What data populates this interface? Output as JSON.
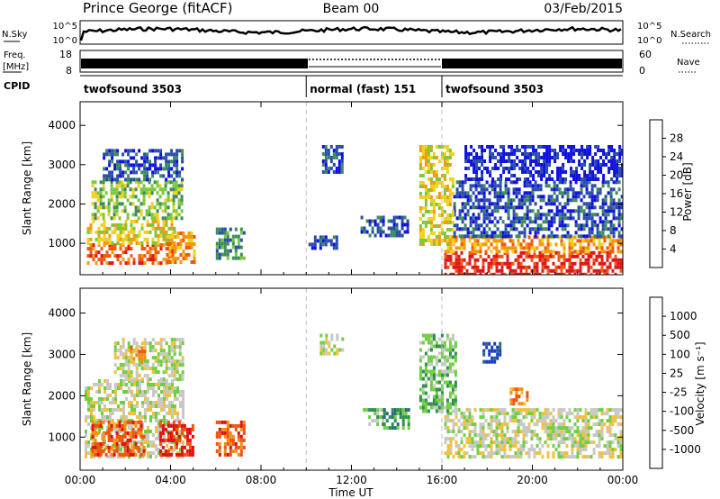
{
  "header": {
    "station": "Prince George (fitACF)",
    "beam": "Beam 00",
    "date": "03/Feb/2015"
  },
  "strips": {
    "nsky_label": "N.Sky",
    "nsky_ticks": [
      "10^5",
      "10^0"
    ],
    "nsearch_label": "N.Search",
    "nsearch_ticks": [
      "10^5",
      "10^0"
    ],
    "freq_label_1": "Freq.",
    "freq_label_2": "[MHz]",
    "freq_ticks": [
      "18",
      "8"
    ],
    "nave_label": "Nave",
    "nave_ticks": [
      "60",
      "0"
    ],
    "cpid_label": "CPID",
    "cpid_segments": [
      {
        "start": 0,
        "end": 10,
        "label": "twofsound 3503"
      },
      {
        "start": 10,
        "end": 16,
        "label": "normal (fast) 151"
      },
      {
        "start": 16,
        "end": 24,
        "label": "twofsound 3503"
      }
    ]
  },
  "chart_data": [
    {
      "type": "heatmap",
      "name": "power",
      "ylabel": "Slant Range [km]",
      "ylim": [
        200,
        4600
      ],
      "yticks": [
        1000,
        2000,
        3000,
        4000
      ],
      "xlim": [
        0,
        24
      ],
      "colorbar_label": "Power [dB]",
      "colorbar_ticks": [
        "4",
        "8",
        "12",
        "16",
        "20",
        "24",
        "28"
      ],
      "colors": [
        "#1010e0",
        "#2a4ea8",
        "#3d8c5a",
        "#7ac83c",
        "#f0d020",
        "#f09a10",
        "#f05a10",
        "#e01818"
      ],
      "regions": [
        {
          "x0": 0.3,
          "x1": 4.2,
          "y0": 500,
          "y1": 1000,
          "level": 6
        },
        {
          "x0": 0.3,
          "x1": 4.2,
          "y0": 1000,
          "y1": 1600,
          "level": 4
        },
        {
          "x0": 0.5,
          "x1": 4.5,
          "y0": 1600,
          "y1": 2600,
          "level": 3
        },
        {
          "x0": 1.0,
          "x1": 4.5,
          "y0": 2600,
          "y1": 3400,
          "level": 1
        },
        {
          "x0": 3.8,
          "x1": 5.0,
          "y0": 500,
          "y1": 1300,
          "level": 5
        },
        {
          "x0": 6.0,
          "x1": 7.2,
          "y0": 600,
          "y1": 1400,
          "level": 2
        },
        {
          "x0": 10.7,
          "x1": 11.6,
          "y0": 2800,
          "y1": 3500,
          "level": 1
        },
        {
          "x0": 12.4,
          "x1": 14.5,
          "y0": 1200,
          "y1": 1700,
          "level": 1
        },
        {
          "x0": 10.1,
          "x1": 11.4,
          "y0": 900,
          "y1": 1200,
          "level": 1
        },
        {
          "x0": 16.1,
          "x1": 24.0,
          "y0": 200,
          "y1": 800,
          "level": 7
        },
        {
          "x0": 16.1,
          "x1": 24.0,
          "y0": 800,
          "y1": 1200,
          "level": 5
        },
        {
          "x0": 16.5,
          "x1": 24.0,
          "y0": 1200,
          "y1": 2600,
          "level": 1
        },
        {
          "x0": 15.0,
          "x1": 16.5,
          "y0": 1000,
          "y1": 3500,
          "level": 4
        },
        {
          "x0": 17.0,
          "x1": 24.0,
          "y0": 2600,
          "y1": 3500,
          "level": 0
        }
      ]
    },
    {
      "type": "heatmap",
      "name": "velocity",
      "ylabel": "Slant Range [km]",
      "xlabel": "Time UT",
      "ylim": [
        200,
        4600
      ],
      "yticks": [
        1000,
        2000,
        3000,
        4000
      ],
      "xlim": [
        0,
        24
      ],
      "xticks": [
        "00:00",
        "04:00",
        "08:00",
        "12:00",
        "16:00",
        "20:00",
        "00:00"
      ],
      "colorbar_label": "Velocity [m s⁻¹]",
      "colorbar_ticks": [
        "1000",
        "500",
        "100",
        "25",
        "-25",
        "-100",
        "-500",
        "-1000"
      ],
      "colors": [
        "#1a3cc8",
        "#2a6a7a",
        "#2f8f4f",
        "#6ed040",
        "#c8c8c4",
        "#f0c040",
        "#f09010",
        "#f05010",
        "#e01010"
      ],
      "regions": [
        {
          "x0": 0.2,
          "x1": 4.5,
          "y0": 500,
          "y1": 2400,
          "level": 4
        },
        {
          "x0": 1.5,
          "x1": 4.5,
          "y0": 2400,
          "y1": 3400,
          "level": 4
        },
        {
          "x0": 0.5,
          "x1": 2.8,
          "y0": 600,
          "y1": 1400,
          "level": 7
        },
        {
          "x0": 3.5,
          "x1": 5.0,
          "y0": 600,
          "y1": 1400,
          "level": 8
        },
        {
          "x0": 2.2,
          "x1": 2.8,
          "y0": 2800,
          "y1": 3200,
          "level": 6
        },
        {
          "x0": 6.0,
          "x1": 7.2,
          "y0": 600,
          "y1": 1400,
          "level": 7
        },
        {
          "x0": 10.6,
          "x1": 11.6,
          "y0": 3000,
          "y1": 3500,
          "level": 4
        },
        {
          "x0": 12.5,
          "x1": 13.4,
          "y0": 1300,
          "y1": 1700,
          "level": 3
        },
        {
          "x0": 13.4,
          "x1": 14.5,
          "y0": 1200,
          "y1": 1700,
          "level": 2
        },
        {
          "x0": 16.1,
          "x1": 24.0,
          "y0": 500,
          "y1": 1700,
          "level": 4
        },
        {
          "x0": 15.0,
          "x1": 16.6,
          "y0": 1600,
          "y1": 3500,
          "level": 3
        },
        {
          "x0": 17.8,
          "x1": 18.6,
          "y0": 2800,
          "y1": 3300,
          "level": 0
        },
        {
          "x0": 19.0,
          "x1": 19.8,
          "y0": 1800,
          "y1": 2200,
          "level": 6
        }
      ]
    }
  ]
}
